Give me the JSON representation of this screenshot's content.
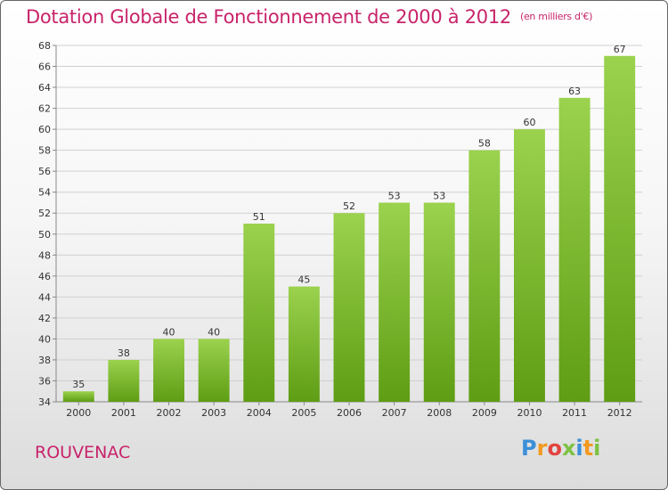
{
  "title": "Dotation Globale de Fonctionnement de 2000 à 2012",
  "unit_note": "(en milliers d'€)",
  "commune": "ROUVENAC",
  "brand": {
    "letters": [
      "P",
      "r",
      "o",
      "x",
      "i",
      "t",
      "i"
    ],
    "colors": [
      "#3b8fd8",
      "#f29a1f",
      "#e2443f",
      "#7cc242",
      "#3b8fd8",
      "#f29a1f",
      "#7cc242"
    ]
  },
  "colors": {
    "bar_light": "#9bd24e",
    "bar_dark": "#5e9d14",
    "grid": "#d0d0d0",
    "title": "#c8236a"
  },
  "chart_data": {
    "type": "bar",
    "title": "Dotation Globale de Fonctionnement de 2000 à 2012",
    "subtitle": "(en milliers d'€)",
    "xlabel": "",
    "ylabel": "",
    "categories": [
      "2000",
      "2001",
      "2002",
      "2003",
      "2004",
      "2005",
      "2006",
      "2007",
      "2008",
      "2009",
      "2010",
      "2011",
      "2012"
    ],
    "values": [
      35,
      38,
      40,
      40,
      51,
      45,
      52,
      53,
      53,
      58,
      60,
      63,
      67
    ],
    "ylim": [
      34,
      68
    ],
    "yticks": [
      34,
      36,
      38,
      40,
      42,
      44,
      46,
      48,
      50,
      52,
      54,
      56,
      58,
      60,
      62,
      64,
      66,
      68
    ],
    "grid": true,
    "legend": "none"
  }
}
